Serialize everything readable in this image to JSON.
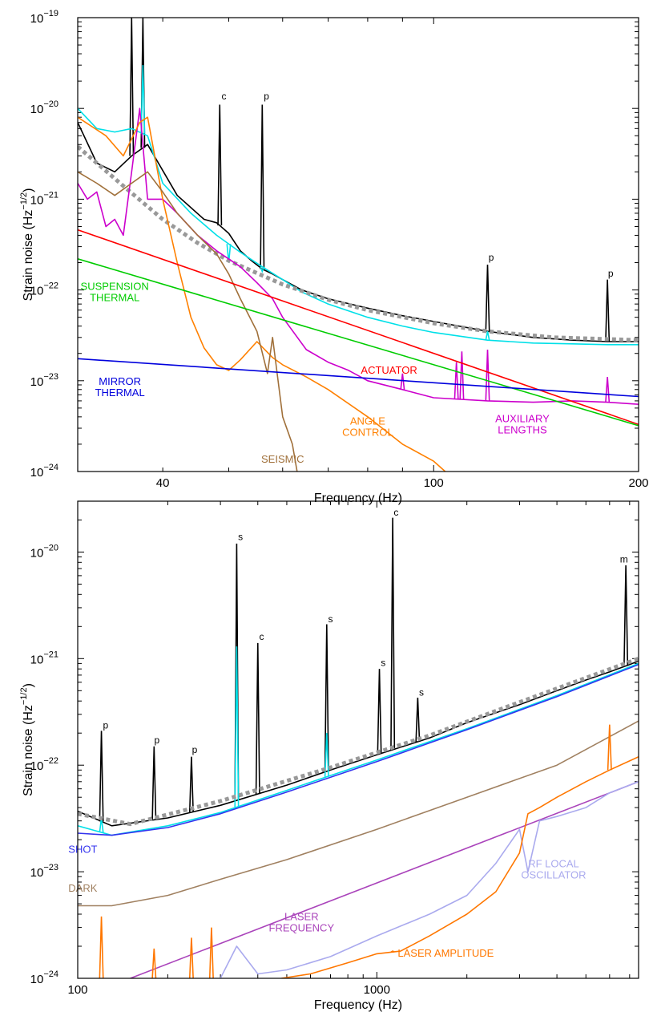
{
  "chart_data": [
    {
      "type": "line",
      "xscale": "log",
      "yscale": "log",
      "xlim": [
        30,
        200
      ],
      "ylim": [
        1e-24,
        1e-19
      ],
      "xlabel": "Frequency (Hz)",
      "ylabel": "Strain noise (Hz",
      "ylabel_sup": "−1/2",
      "ylabel_end": ")",
      "xticks": [
        {
          "v": 40,
          "label": "40"
        },
        {
          "v": 100,
          "label": "100"
        },
        {
          "v": 200,
          "label": "200"
        }
      ],
      "yticks": [
        {
          "v": 1e-19,
          "base": "10",
          "exp": "−19"
        },
        {
          "v": 1e-20,
          "base": "10",
          "exp": "−20"
        },
        {
          "v": 1e-21,
          "base": "10",
          "exp": "−21"
        },
        {
          "v": 1e-22,
          "base": "10",
          "exp": "−22"
        },
        {
          "v": 1e-23,
          "base": "10",
          "exp": "−23"
        },
        {
          "v": 1e-24,
          "base": "10",
          "exp": "−24"
        }
      ],
      "series": [
        {
          "color": "#000000",
          "dash": false,
          "x": [
            30,
            32,
            34,
            36,
            38,
            42,
            46,
            48,
            50,
            52,
            54,
            56,
            58,
            60,
            64,
            70,
            80,
            90,
            100,
            120,
            140,
            160,
            180,
            200
          ],
          "y": [
            7e-21,
            2.5e-21,
            2e-21,
            3e-21,
            4e-21,
            1.1e-21,
            6e-22,
            5.5e-22,
            4.2e-22,
            2.7e-22,
            2.1e-22,
            1.7e-22,
            1.5e-22,
            1.3e-22,
            1e-22,
            8e-23,
            6.3e-23,
            5.2e-23,
            4.5e-23,
            3.5e-23,
            3e-23,
            2.8e-23,
            2.7e-23,
            2.7e-23
          ],
          "peaks": [
            {
              "x": 36,
              "y": 1e-19
            },
            {
              "x": 37.4,
              "y": 1e-19
            },
            {
              "x": 48.5,
              "y": 1.1e-20
            },
            {
              "x": 56,
              "y": 1.1e-20
            },
            {
              "x": 120,
              "y": 1.9e-22
            },
            {
              "x": 180,
              "y": 1.3e-22
            }
          ]
        },
        {
          "color": "#00e0e8",
          "dash": false,
          "x": [
            30,
            32,
            34,
            36,
            38,
            40,
            44,
            48,
            52,
            56,
            60,
            64,
            70,
            80,
            90,
            100,
            120,
            140,
            160,
            180,
            200
          ],
          "y": [
            1e-20,
            6e-21,
            5.5e-21,
            6e-21,
            5e-21,
            1.5e-21,
            7e-22,
            4e-22,
            2.6e-22,
            1.8e-22,
            1.3e-22,
            9.5e-23,
            7e-23,
            5e-23,
            4e-23,
            3.4e-23,
            2.8e-23,
            2.6e-23,
            2.55e-23,
            2.5e-23,
            2.5e-23
          ],
          "peaks": [
            {
              "x": 37.4,
              "y": 3e-20
            },
            {
              "x": 50,
              "y": 2e-22
            },
            {
              "x": 56,
              "y": 1.6e-22
            },
            {
              "x": 120,
              "y": 3.5e-23
            }
          ]
        },
        {
          "color": "#999999",
          "dash": true,
          "x": [
            30,
            35,
            40,
            45,
            50,
            60,
            70,
            80,
            100,
            120,
            150,
            200
          ],
          "y": [
            3.8e-21,
            1.4e-21,
            6e-22,
            3.3e-22,
            2.1e-22,
            1.15e-22,
            7.8e-23,
            6e-23,
            4.3e-23,
            3.5e-23,
            3e-23,
            2.8e-23
          ],
          "peaks": []
        },
        {
          "color": "#cc00cc",
          "dash": false,
          "x": [
            30,
            31,
            32,
            33,
            34,
            35,
            36,
            37,
            38,
            40,
            42,
            45,
            48,
            52,
            55,
            58,
            60,
            65,
            70,
            75,
            80,
            90,
            100,
            120,
            140,
            160,
            180,
            200
          ],
          "y": [
            1.5e-21,
            1e-21,
            1.2e-21,
            5e-22,
            6e-22,
            4e-22,
            2e-21,
            1e-20,
            1e-21,
            1e-21,
            7e-22,
            4e-22,
            2.7e-22,
            1.8e-22,
            1.2e-22,
            8e-23,
            5e-23,
            2.2e-23,
            1.6e-23,
            1.3e-23,
            1e-23,
            8e-24,
            6.5e-24,
            6e-24,
            5.8e-24,
            6e-24,
            5.8e-24,
            5.5e-24
          ],
          "peaks": [
            {
              "x": 90,
              "y": 1.2e-23
            },
            {
              "x": 108,
              "y": 1.6e-23
            },
            {
              "x": 110,
              "y": 2.1e-23
            },
            {
              "x": 120,
              "y": 2.2e-23
            },
            {
              "x": 180,
              "y": 1.1e-23
            }
          ]
        },
        {
          "color": "#ff8000",
          "dash": false,
          "x": [
            30,
            33,
            35,
            37,
            38,
            40,
            42,
            44,
            46,
            48,
            50,
            52,
            55,
            58,
            60,
            65,
            70,
            80,
            90,
            100,
            104
          ],
          "y": [
            8e-21,
            5e-21,
            3e-21,
            7e-21,
            8e-21,
            1e-21,
            2e-22,
            5e-23,
            2.3e-23,
            1.5e-23,
            1.3e-23,
            1.7e-23,
            2.7e-23,
            1.8e-23,
            1.5e-23,
            1.1e-23,
            8e-24,
            4e-24,
            2e-24,
            1.3e-24,
            1e-24
          ],
          "peaks": []
        },
        {
          "color": "#a0703a",
          "dash": false,
          "x": [
            30,
            32,
            34,
            36,
            38,
            40,
            42,
            45,
            48,
            50,
            52,
            55,
            57,
            58,
            60,
            62,
            63
          ],
          "y": [
            2e-21,
            1.5e-21,
            1.1e-21,
            1.5e-21,
            2e-21,
            1.2e-21,
            7e-22,
            4e-22,
            2.5e-22,
            1.5e-22,
            8e-23,
            3.5e-23,
            1.2e-23,
            3e-23,
            4e-24,
            2e-24,
            1e-24
          ],
          "peaks": []
        },
        {
          "color": "#ff0000",
          "dash": false,
          "x": [
            30,
            200
          ],
          "y": [
            4.6e-22,
            3.3e-24
          ],
          "peaks": []
        },
        {
          "color": "#00cc00",
          "dash": false,
          "x": [
            30,
            200
          ],
          "y": [
            2.2e-22,
            3.2e-24
          ],
          "peaks": []
        },
        {
          "color": "#0000dd",
          "dash": false,
          "x": [
            30,
            200
          ],
          "y": [
            1.75e-23,
            6.7e-24
          ],
          "peaks": []
        }
      ],
      "annotations": [
        {
          "lines": [
            "SUSPENSION",
            "THERMAL"
          ],
          "color": "#00cc00",
          "x": 34.0,
          "y": 1e-22
        },
        {
          "lines": [
            "MIRROR",
            "THERMAL"
          ],
          "color": "#0000dd",
          "x": 34.6,
          "y": 9e-24
        },
        {
          "lines": [
            "ACTUATOR"
          ],
          "color": "#ff0000",
          "x": 86,
          "y": 1.2e-23
        },
        {
          "lines": [
            "ANGLE",
            "CONTROL"
          ],
          "color": "#ff8000",
          "x": 80,
          "y": 3.3e-24
        },
        {
          "lines": [
            "SEISMIC"
          ],
          "color": "#a0703a",
          "x": 60,
          "y": 1.25e-24
        },
        {
          "lines": [
            "AUXILIARY",
            "LENGTHS"
          ],
          "color": "#cc00cc",
          "x": 135,
          "y": 3.5e-24
        }
      ],
      "peak_labels": [
        {
          "text": "c",
          "x": 49.2,
          "y": 1.25e-20
        },
        {
          "text": "p",
          "x": 56.8,
          "y": 1.25e-20
        },
        {
          "text": "p",
          "x": 121.5,
          "y": 2.1e-22
        },
        {
          "text": "p",
          "x": 182,
          "y": 1.4e-22
        }
      ]
    },
    {
      "type": "line",
      "xscale": "log",
      "yscale": "log",
      "xlim": [
        100,
        7500
      ],
      "ylim": [
        1e-24,
        3e-20
      ],
      "xlabel": "Frequency (Hz)",
      "ylabel": "Strain noise (Hz",
      "ylabel_sup": "−1/2",
      "ylabel_end": ")",
      "xticks": [
        {
          "v": 100,
          "label": "100"
        },
        {
          "v": 1000,
          "label": "1000"
        }
      ],
      "yticks": [
        {
          "v": 1e-20,
          "base": "10",
          "exp": "−20"
        },
        {
          "v": 1e-21,
          "base": "10",
          "exp": "−21"
        },
        {
          "v": 1e-22,
          "base": "10",
          "exp": "−22"
        },
        {
          "v": 1e-23,
          "base": "10",
          "exp": "−23"
        },
        {
          "v": 1e-24,
          "base": "10",
          "exp": "−24"
        }
      ],
      "series": [
        {
          "color": "#000000",
          "dash": false,
          "x": [
            100,
            130,
            200,
            300,
            500,
            700,
            1000,
            1500,
            2000,
            3000,
            4000,
            5000,
            6000,
            7000,
            7500
          ],
          "y": [
            3.7e-23,
            2.7e-23,
            3.2e-23,
            4.2e-23,
            6.5e-23,
            9e-23,
            1.25e-22,
            1.8e-22,
            2.5e-22,
            3.7e-22,
            5e-22,
            6.3e-22,
            7.5e-22,
            8.8e-22,
            9.5e-22
          ],
          "peaks": [
            {
              "x": 120,
              "y": 2.1e-22
            },
            {
              "x": 180,
              "y": 1.5e-22
            },
            {
              "x": 240,
              "y": 1.2e-22
            },
            {
              "x": 340,
              "y": 1.2e-20
            },
            {
              "x": 400,
              "y": 1.4e-21
            },
            {
              "x": 680,
              "y": 2.1e-21
            },
            {
              "x": 1020,
              "y": 8e-22
            },
            {
              "x": 1130,
              "y": 2.1e-20
            },
            {
              "x": 1370,
              "y": 4.3e-22
            },
            {
              "x": 6800,
              "y": 7.5e-21
            }
          ]
        },
        {
          "color": "#00e0e8",
          "dash": false,
          "x": [
            100,
            130,
            200,
            300,
            500,
            700,
            1000,
            2000,
            4000,
            7500
          ],
          "y": [
            2.7e-23,
            2.2e-23,
            2.7e-23,
            3.6e-23,
            5.8e-23,
            8e-23,
            1.12e-22,
            2.2e-22,
            4.5e-22,
            9e-22
          ],
          "peaks": [
            {
              "x": 120,
              "y": 3.2e-23
            },
            {
              "x": 340,
              "y": 1.3e-21
            },
            {
              "x": 680,
              "y": 2e-22
            }
          ]
        },
        {
          "color": "#999999",
          "dash": true,
          "x": [
            100,
            150,
            300,
            700,
            1500,
            3000,
            7500
          ],
          "y": [
            3.5e-23,
            2.8e-23,
            4.6e-23,
            9.5e-23,
            1.9e-22,
            3.9e-22,
            1e-21
          ],
          "peaks": []
        },
        {
          "color": "#3333ee",
          "dash": false,
          "x": [
            100,
            130,
            200,
            300,
            500,
            1000,
            2000,
            4000,
            7500
          ],
          "y": [
            2.3e-23,
            2.2e-23,
            2.6e-23,
            3.5e-23,
            5.6e-23,
            1.08e-22,
            2.15e-22,
            4.4e-22,
            8.8e-22
          ],
          "peaks": []
        },
        {
          "color": "#a08060",
          "dash": false,
          "x": [
            100,
            130,
            200,
            300,
            500,
            1000,
            2000,
            4000,
            7500
          ],
          "y": [
            4.8e-24,
            4.8e-24,
            6e-24,
            8.5e-24,
            1.3e-23,
            2.5e-23,
            5e-23,
            1e-22,
            2.6e-22
          ],
          "peaks": []
        },
        {
          "color": "#aa44bb",
          "dash": false,
          "x": [
            150,
            7500
          ],
          "y": [
            1e-24,
            7e-23
          ],
          "peaks": []
        },
        {
          "color": "#aaaaee",
          "dash": false,
          "x": [
            300,
            340,
            400,
            500,
            700,
            1000,
            1500,
            2000,
            2500,
            3000,
            3200,
            3500,
            4000,
            5000,
            6000,
            7500
          ],
          "y": [
            1e-24,
            2e-24,
            1.1e-24,
            1.2e-24,
            1.6e-24,
            2.5e-24,
            4e-24,
            6e-24,
            1.2e-23,
            2.5e-23,
            1e-23,
            3e-23,
            3.3e-23,
            4e-23,
            5.5e-23,
            7e-23
          ],
          "peaks": []
        },
        {
          "color": "#ff7700",
          "dash": false,
          "x": [
            480,
            600,
            800,
            1000,
            1200,
            1500,
            2000,
            2500,
            3000,
            3200,
            3500,
            4000,
            5000,
            6000,
            7500
          ],
          "y": [
            1e-24,
            1.1e-24,
            1.4e-24,
            1.7e-24,
            1.8e-24,
            2.5e-24,
            4e-24,
            6.5e-24,
            1.5e-23,
            3.5e-23,
            4e-23,
            5e-23,
            7e-23,
            9e-23,
            1.2e-22
          ],
          "peaks": [
            {
              "x": 120,
              "y": 3.8e-24
            },
            {
              "x": 180,
              "y": 1.9e-24
            },
            {
              "x": 240,
              "y": 2.4e-24
            },
            {
              "x": 280,
              "y": 3e-24
            },
            {
              "x": 1130,
              "y": 1.8e-24
            },
            {
              "x": 6000,
              "y": 2.4e-22
            }
          ]
        }
      ],
      "annotations": [
        {
          "lines": [
            "SHOT"
          ],
          "color": "#3333ee",
          "x": 104,
          "y": 1.5e-23
        },
        {
          "lines": [
            "DARK"
          ],
          "color": "#a08060",
          "x": 104,
          "y": 6.5e-24
        },
        {
          "lines": [
            "LASER",
            "FREQUENCY"
          ],
          "color": "#aa44bb",
          "x": 560,
          "y": 3.5e-24
        },
        {
          "lines": [
            "RF LOCAL",
            "OSCILLATOR"
          ],
          "color": "#aaaaee",
          "x": 3900,
          "y": 1.1e-23
        },
        {
          "lines": [
            "LASER AMPLITUDE"
          ],
          "color": "#ff7700",
          "x": 1700,
          "y": 1.6e-24
        }
      ],
      "peak_labels": [
        {
          "text": "p",
          "x": 124,
          "y": 2.2e-22
        },
        {
          "text": "p",
          "x": 184,
          "y": 1.6e-22
        },
        {
          "text": "p",
          "x": 246,
          "y": 1.3e-22
        },
        {
          "text": "s",
          "x": 350,
          "y": 1.3e-20
        },
        {
          "text": "c",
          "x": 412,
          "y": 1.5e-21
        },
        {
          "text": "s",
          "x": 700,
          "y": 2.2e-21
        },
        {
          "text": "s",
          "x": 1050,
          "y": 8.5e-22
        },
        {
          "text": "c",
          "x": 1160,
          "y": 2.2e-20
        },
        {
          "text": "s",
          "x": 1410,
          "y": 4.5e-22
        },
        {
          "text": "m",
          "x": 6700,
          "y": 8e-21
        }
      ]
    }
  ]
}
